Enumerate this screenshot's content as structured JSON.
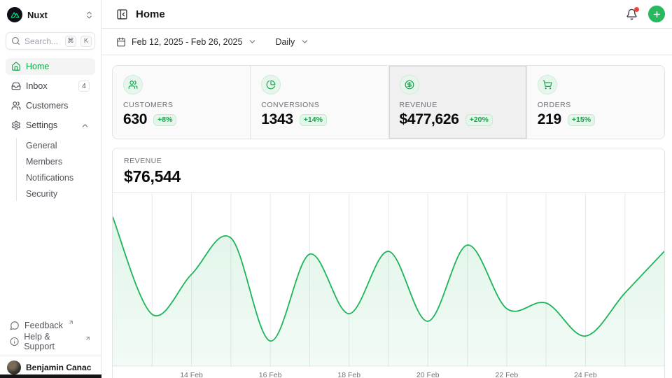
{
  "brand": {
    "name": "Nuxt"
  },
  "sidebar": {
    "search": {
      "placeholder": "Search...",
      "kbd": [
        "⌘",
        "K"
      ]
    },
    "items": [
      {
        "label": "Home"
      },
      {
        "label": "Inbox",
        "badge": "4"
      },
      {
        "label": "Customers"
      },
      {
        "label": "Settings"
      }
    ],
    "settings_children": [
      {
        "label": "General"
      },
      {
        "label": "Members"
      },
      {
        "label": "Notifications"
      },
      {
        "label": "Security"
      }
    ],
    "footer": [
      {
        "label": "Feedback"
      },
      {
        "label": "Help & Support"
      }
    ],
    "user": {
      "name": "Benjamin Canac"
    }
  },
  "header": {
    "title": "Home"
  },
  "toolbar": {
    "date_range": "Feb 12, 2025 - Feb 26, 2025",
    "period": "Daily"
  },
  "stats": [
    {
      "label": "CUSTOMERS",
      "value": "630",
      "delta": "+8%"
    },
    {
      "label": "CONVERSIONS",
      "value": "1343",
      "delta": "+14%"
    },
    {
      "label": "REVENUE",
      "value": "$477,626",
      "delta": "+20%"
    },
    {
      "label": "ORDERS",
      "value": "219",
      "delta": "+15%"
    }
  ],
  "chart": {
    "label": "REVENUE",
    "value": "$76,544"
  },
  "chart_data": {
    "type": "area",
    "title": "Revenue (daily)",
    "x": [
      "12 Feb",
      "13 Feb",
      "14 Feb",
      "15 Feb",
      "16 Feb",
      "17 Feb",
      "18 Feb",
      "19 Feb",
      "20 Feb",
      "21 Feb",
      "22 Feb",
      "23 Feb",
      "24 Feb",
      "25 Feb",
      "26 Feb"
    ],
    "values": [
      69000,
      24200,
      42600,
      59400,
      11900,
      51900,
      24500,
      53200,
      21000,
      56100,
      26800,
      29400,
      14200,
      34000,
      53200
    ],
    "ylim": [
      0,
      80000
    ],
    "xticks": [
      {
        "index": 2,
        "label": "14 Feb"
      },
      {
        "index": 4,
        "label": "16 Feb"
      },
      {
        "index": 6,
        "label": "18 Feb"
      },
      {
        "index": 8,
        "label": "20 Feb"
      },
      {
        "index": 10,
        "label": "22 Feb"
      },
      {
        "index": 12,
        "label": "24 Feb"
      }
    ],
    "grid": "vertical-daily",
    "legend": false
  },
  "colors": {
    "primary": "#27b960",
    "primary_text": "#16a34a",
    "area_line": "#1db45a",
    "brand_green": "#00dc82",
    "notification_dot": "#ee4444"
  }
}
